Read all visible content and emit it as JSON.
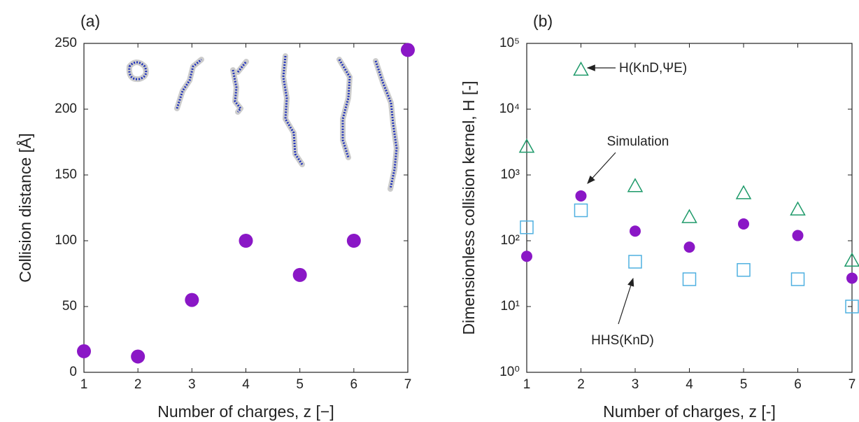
{
  "chart_data": [
    {
      "type": "scatter",
      "title": "(a)",
      "x_label": "Number of charges, z [−]",
      "y_label": "Collision distance [Å]",
      "x": [
        1,
        2,
        3,
        4,
        5,
        6,
        7
      ],
      "values": [
        16,
        12,
        55,
        100,
        74,
        100,
        245
      ],
      "color": "#8a17c6",
      "marker": "circle",
      "xlim": [
        1,
        7
      ],
      "ylim": [
        0,
        250
      ],
      "xticks": [
        1,
        2,
        3,
        4,
        5,
        6,
        7
      ],
      "yticks": [
        0,
        50,
        100,
        150,
        200,
        250
      ],
      "log_y": false
    },
    {
      "type": "scatter",
      "title": "(b)",
      "x_label": "Number of charges, z [-]",
      "y_label": "Dimensionless collision kernel, H [-]",
      "x": [
        1,
        2,
        3,
        4,
        5,
        6,
        7
      ],
      "series": [
        {
          "name": "H(KnD,ΨE)",
          "color": "#1e9a6a",
          "marker": "triangle",
          "values": [
            2700,
            40000,
            680,
            230,
            530,
            300,
            50
          ]
        },
        {
          "name": "Simulation",
          "color": "#8a17c6",
          "marker": "circle",
          "values": [
            58,
            480,
            140,
            80,
            180,
            120,
            27
          ]
        },
        {
          "name": "HHS(KnD)",
          "color": "#4fb0e0",
          "marker": "square",
          "values": [
            160,
            290,
            48,
            26,
            36,
            26,
            10
          ]
        }
      ],
      "xlim": [
        1,
        7
      ],
      "ylim": [
        1,
        100000
      ],
      "xticks": [
        1,
        2,
        3,
        4,
        5,
        6,
        7
      ],
      "yticks": [
        {
          "value": 1,
          "label": "10⁰"
        },
        {
          "value": 10,
          "label": "10¹"
        },
        {
          "value": 100,
          "label": "10²"
        },
        {
          "value": 1000,
          "label": "10³"
        },
        {
          "value": 10000,
          "label": "10⁴"
        },
        {
          "value": 100000,
          "label": "10⁵"
        }
      ],
      "log_y": true
    }
  ]
}
